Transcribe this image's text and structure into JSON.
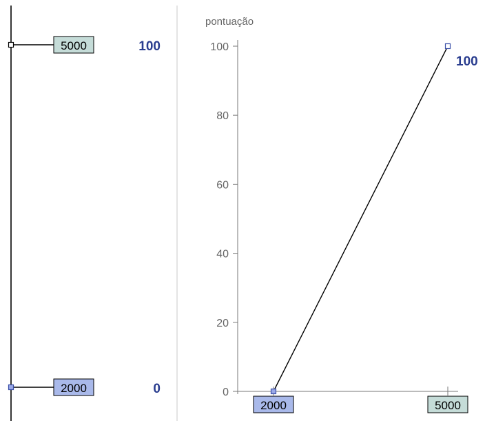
{
  "left_panel": {
    "markers": [
      {
        "input_value": "5000",
        "score": "100",
        "selected": false
      },
      {
        "input_value": "2000",
        "score": "0",
        "selected": true
      }
    ]
  },
  "chart_data": {
    "type": "line",
    "ylabel": "pontuação",
    "xlabel": "",
    "ylim": [
      0,
      100
    ],
    "yticks": [
      0,
      20,
      40,
      60,
      80,
      100
    ],
    "x": [
      2000,
      5000
    ],
    "x_tick_labels": [
      "2000",
      "5000"
    ],
    "series": [
      {
        "values": [
          0,
          100
        ],
        "point_labels": [
          "",
          "100"
        ]
      }
    ],
    "grid": false,
    "colors": {
      "line": "#000000",
      "axis": "#777777",
      "tick_text": "#666666",
      "label_box_default": "#c5dcd8",
      "label_box_selected": "#a9b9ea",
      "score_text": "#2a3d8f",
      "marker_default": "#ffffff",
      "marker_selected": "#9aa9e8",
      "separator": "#c8c8c8"
    }
  }
}
